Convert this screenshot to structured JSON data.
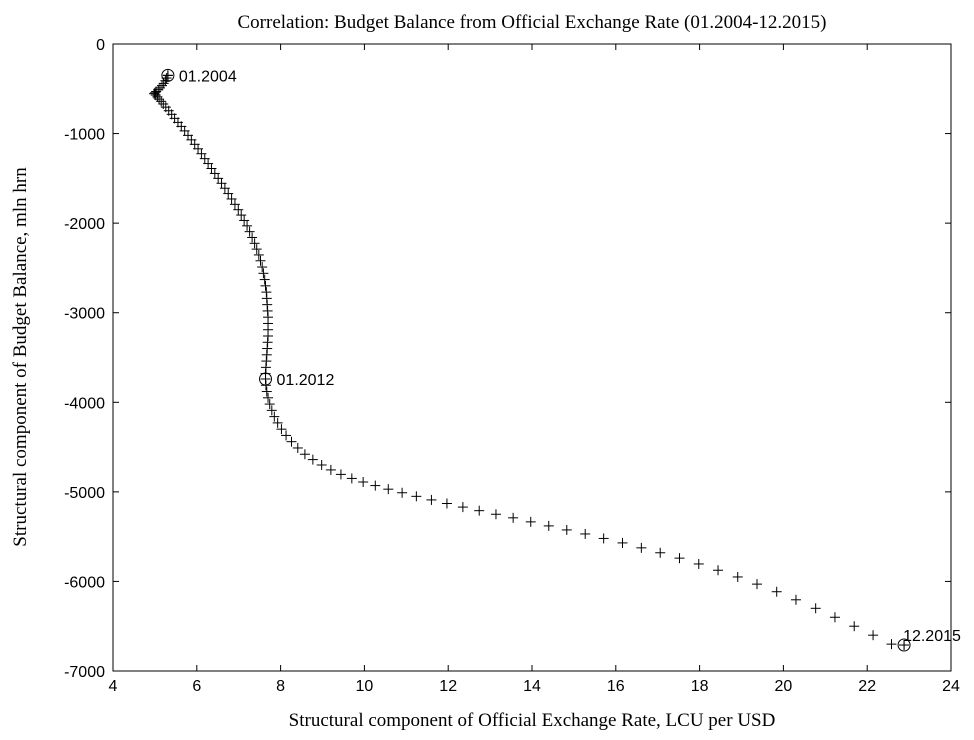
{
  "chart_data": {
    "type": "scatter",
    "title": "Correlation: Budget Balance from Official Exchange Rate (01.2004-12.2015)",
    "xlabel": "Structural component of Official Exchange Rate, LCU per USD",
    "ylabel": "Structural component of Budget Balance, mln hrn",
    "xlim": [
      4,
      24
    ],
    "ylim": [
      -7000,
      0
    ],
    "xticks": [
      "4",
      "6",
      "8",
      "10",
      "12",
      "14",
      "16",
      "18",
      "20",
      "22",
      "24"
    ],
    "yticks": [
      "0",
      "-1000",
      "-2000",
      "-3000",
      "-4000",
      "-5000",
      "-6000",
      "-7000"
    ],
    "grid": false,
    "marker": "plus",
    "series": [
      {
        "points": [
          [
            5.31,
            -350
          ],
          [
            5.28,
            -380
          ],
          [
            5.25,
            -410
          ],
          [
            5.21,
            -440
          ],
          [
            5.17,
            -465
          ],
          [
            5.12,
            -490
          ],
          [
            5.08,
            -510
          ],
          [
            5.03,
            -530
          ],
          [
            5.0,
            -545
          ],
          [
            4.98,
            -555
          ],
          [
            5.02,
            -570
          ],
          [
            5.06,
            -590
          ],
          [
            5.1,
            -615
          ],
          [
            5.15,
            -640
          ],
          [
            5.2,
            -670
          ],
          [
            5.26,
            -705
          ],
          [
            5.33,
            -745
          ],
          [
            5.4,
            -785
          ],
          [
            5.47,
            -830
          ],
          [
            5.55,
            -875
          ],
          [
            5.63,
            -920
          ],
          [
            5.71,
            -970
          ],
          [
            5.79,
            -1020
          ],
          [
            5.87,
            -1070
          ],
          [
            5.95,
            -1120
          ],
          [
            6.03,
            -1170
          ],
          [
            6.11,
            -1225
          ],
          [
            6.19,
            -1280
          ],
          [
            6.27,
            -1335
          ],
          [
            6.35,
            -1390
          ],
          [
            6.43,
            -1445
          ],
          [
            6.51,
            -1500
          ],
          [
            6.59,
            -1555
          ],
          [
            6.67,
            -1610
          ],
          [
            6.75,
            -1670
          ],
          [
            6.83,
            -1730
          ],
          [
            6.91,
            -1790
          ],
          [
            6.99,
            -1850
          ],
          [
            7.06,
            -1910
          ],
          [
            7.13,
            -1970
          ],
          [
            7.2,
            -2030
          ],
          [
            7.26,
            -2095
          ],
          [
            7.32,
            -2160
          ],
          [
            7.38,
            -2225
          ],
          [
            7.43,
            -2290
          ],
          [
            7.48,
            -2355
          ],
          [
            7.52,
            -2420
          ],
          [
            7.56,
            -2490
          ],
          [
            7.59,
            -2560
          ],
          [
            7.62,
            -2630
          ],
          [
            7.64,
            -2700
          ],
          [
            7.66,
            -2770
          ],
          [
            7.67,
            -2840
          ],
          [
            7.68,
            -2910
          ],
          [
            7.69,
            -2980
          ],
          [
            7.7,
            -3050
          ],
          [
            7.7,
            -3120
          ],
          [
            7.7,
            -3190
          ],
          [
            7.7,
            -3260
          ],
          [
            7.69,
            -3330
          ],
          [
            7.68,
            -3400
          ],
          [
            7.67,
            -3470
          ],
          [
            7.66,
            -3540
          ],
          [
            7.65,
            -3610
          ],
          [
            7.64,
            -3680
          ],
          [
            7.64,
            -3740
          ],
          [
            7.65,
            -3810
          ],
          [
            7.67,
            -3880
          ],
          [
            7.7,
            -3950
          ],
          [
            7.74,
            -4020
          ],
          [
            7.79,
            -4090
          ],
          [
            7.85,
            -4160
          ],
          [
            7.93,
            -4230
          ],
          [
            8.02,
            -4300
          ],
          [
            8.13,
            -4370
          ],
          [
            8.26,
            -4440
          ],
          [
            8.41,
            -4510
          ],
          [
            8.58,
            -4580
          ],
          [
            8.77,
            -4640
          ],
          [
            8.98,
            -4700
          ],
          [
            9.2,
            -4755
          ],
          [
            9.44,
            -4805
          ],
          [
            9.7,
            -4850
          ],
          [
            9.97,
            -4890
          ],
          [
            10.26,
            -4930
          ],
          [
            10.57,
            -4970
          ],
          [
            10.9,
            -5010
          ],
          [
            11.24,
            -5050
          ],
          [
            11.6,
            -5090
          ],
          [
            11.97,
            -5130
          ],
          [
            12.35,
            -5170
          ],
          [
            12.74,
            -5210
          ],
          [
            13.14,
            -5250
          ],
          [
            13.55,
            -5290
          ],
          [
            13.97,
            -5335
          ],
          [
            14.4,
            -5380
          ],
          [
            14.83,
            -5425
          ],
          [
            15.27,
            -5470
          ],
          [
            15.71,
            -5520
          ],
          [
            16.16,
            -5570
          ],
          [
            16.61,
            -5625
          ],
          [
            17.06,
            -5680
          ],
          [
            17.52,
            -5740
          ],
          [
            17.98,
            -5805
          ],
          [
            18.44,
            -5875
          ],
          [
            18.91,
            -5950
          ],
          [
            19.37,
            -6030
          ],
          [
            19.84,
            -6115
          ],
          [
            20.3,
            -6205
          ],
          [
            20.77,
            -6300
          ],
          [
            21.23,
            -6400
          ],
          [
            21.69,
            -6500
          ],
          [
            22.14,
            -6600
          ],
          [
            22.58,
            -6700
          ],
          [
            22.88,
            -6710
          ]
        ]
      }
    ],
    "annotations": [
      {
        "text": "01.2004",
        "x": 5.31,
        "y": -350
      },
      {
        "text": "01.2012",
        "x": 7.64,
        "y": -3740
      },
      {
        "text": "12.2015",
        "x": 22.88,
        "y": -6710
      }
    ]
  }
}
